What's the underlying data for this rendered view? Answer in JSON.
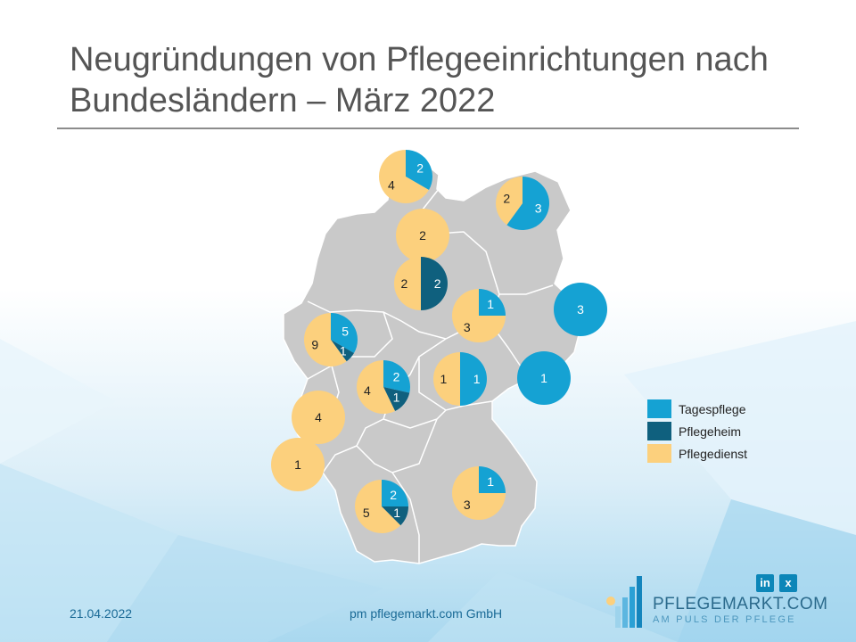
{
  "title": "Neugründungen von Pflegeeinrichtungen nach Bundesländern – März 2022",
  "colors": {
    "tagespflege": "#15a2d3",
    "pflegeheim": "#0f607e",
    "pflegedienst": "#fcd07d",
    "map": "#c9c9c9",
    "border": "#ffffff"
  },
  "legend": [
    {
      "key": "tagespflege",
      "label": "Tagespflege"
    },
    {
      "key": "pflegeheim",
      "label": "Pflegeheim"
    },
    {
      "key": "pflegedienst",
      "label": "Pflegedienst"
    }
  ],
  "chart_data": {
    "type": "pie",
    "title": "Neugründungen von Pflegeeinrichtungen nach Bundesländern – März 2022",
    "series_keys": [
      "tagespflege",
      "pflegeheim",
      "pflegedienst"
    ],
    "legend_position": "right",
    "pies": [
      {
        "id": "schleswig-holstein",
        "values": {
          "tagespflege": 2,
          "pflegeheim": 0,
          "pflegedienst": 4
        }
      },
      {
        "id": "mecklenburg-vorpommern",
        "values": {
          "tagespflege": 3,
          "pflegeheim": 0,
          "pflegedienst": 2
        }
      },
      {
        "id": "hamburg",
        "values": {
          "tagespflege": 0,
          "pflegeheim": 0,
          "pflegedienst": 2
        }
      },
      {
        "id": "niedersachsen",
        "values": {
          "tagespflege": 0,
          "pflegeheim": 2,
          "pflegedienst": 2
        }
      },
      {
        "id": "sachsen-anhalt",
        "values": {
          "tagespflege": 1,
          "pflegeheim": 0,
          "pflegedienst": 3
        }
      },
      {
        "id": "berlin",
        "values": {
          "tagespflege": 3,
          "pflegeheim": 0,
          "pflegedienst": 0
        }
      },
      {
        "id": "nordrhein-westfalen",
        "values": {
          "tagespflege": 5,
          "pflegeheim": 1,
          "pflegedienst": 9
        }
      },
      {
        "id": "hessen",
        "values": {
          "tagespflege": 2,
          "pflegeheim": 1,
          "pflegedienst": 4
        }
      },
      {
        "id": "thueringen",
        "values": {
          "tagespflege": 1,
          "pflegeheim": 0,
          "pflegedienst": 1
        }
      },
      {
        "id": "sachsen",
        "values": {
          "tagespflege": 1,
          "pflegeheim": 0,
          "pflegedienst": 0
        }
      },
      {
        "id": "rheinland-pfalz",
        "values": {
          "tagespflege": 0,
          "pflegeheim": 0,
          "pflegedienst": 4
        }
      },
      {
        "id": "saarland",
        "values": {
          "tagespflege": 0,
          "pflegeheim": 0,
          "pflegedienst": 1
        }
      },
      {
        "id": "baden-wuerttemberg",
        "values": {
          "tagespflege": 2,
          "pflegeheim": 1,
          "pflegedienst": 5
        }
      },
      {
        "id": "bayern",
        "values": {
          "tagespflege": 1,
          "pflegeheim": 0,
          "pflegedienst": 3
        }
      }
    ]
  },
  "footer": {
    "date": "21.04.2022",
    "company": "pm pflegemarkt.com GmbH",
    "brand": "PFLEGEMARKT.COM",
    "tagline": "AM PULS DER PFLEGE",
    "linkedin": "in",
    "xing": "x"
  }
}
